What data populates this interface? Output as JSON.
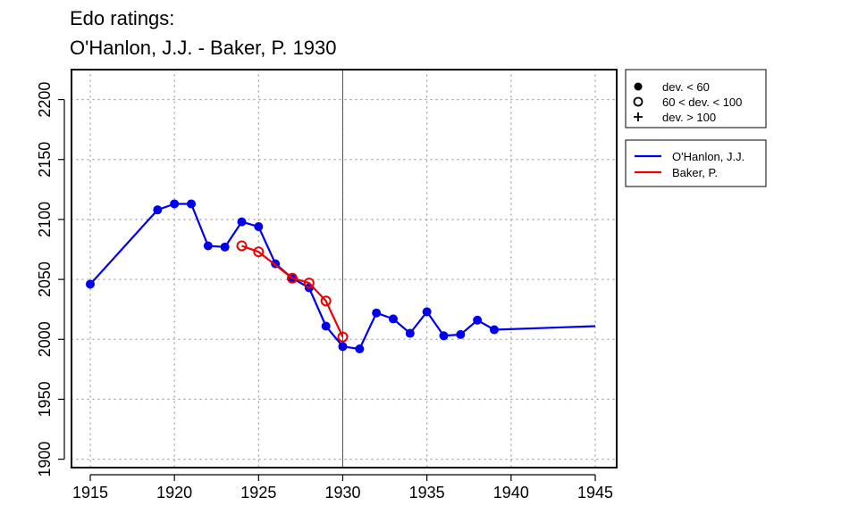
{
  "chart_data": {
    "type": "line",
    "title": "Edo ratings:",
    "subtitle": "O'Hanlon, J.J. - Baker, P. 1930",
    "xlabel": "",
    "ylabel": "",
    "xlim": [
      1915,
      1945
    ],
    "ylim": [
      1893,
      2225
    ],
    "x_ticks": [
      1915,
      1920,
      1925,
      1930,
      1935,
      1940,
      1945
    ],
    "y_ticks": [
      1900,
      1950,
      2000,
      2050,
      2100,
      2150,
      2200
    ],
    "grid": true,
    "reference_line_x": 1930,
    "legend_placement": "right",
    "marker_legend": [
      {
        "symbol": "filled-circle",
        "label": "dev. < 60"
      },
      {
        "symbol": "open-circle",
        "label": "60 < dev. < 100"
      },
      {
        "symbol": "plus",
        "label": "dev. > 100"
      }
    ],
    "series": [
      {
        "name": "O'Hanlon, J.J.",
        "color": "#0000ee",
        "points": [
          {
            "x": 1915,
            "y": 2046,
            "marker": "filled-circle"
          },
          {
            "x": 1919,
            "y": 2108,
            "marker": "filled-circle"
          },
          {
            "x": 1920,
            "y": 2113,
            "marker": "filled-circle"
          },
          {
            "x": 1921,
            "y": 2113,
            "marker": "filled-circle"
          },
          {
            "x": 1922,
            "y": 2078,
            "marker": "filled-circle"
          },
          {
            "x": 1923,
            "y": 2077,
            "marker": "filled-circle"
          },
          {
            "x": 1924,
            "y": 2098,
            "marker": "filled-circle"
          },
          {
            "x": 1925,
            "y": 2094,
            "marker": "filled-circle"
          },
          {
            "x": 1926,
            "y": 2063,
            "marker": "filled-circle"
          },
          {
            "x": 1927,
            "y": 2051,
            "marker": "filled-circle"
          },
          {
            "x": 1928,
            "y": 2043,
            "marker": "filled-circle"
          },
          {
            "x": 1929,
            "y": 2011,
            "marker": "filled-circle"
          },
          {
            "x": 1930,
            "y": 1994,
            "marker": "filled-circle"
          },
          {
            "x": 1931,
            "y": 1992,
            "marker": "filled-circle"
          },
          {
            "x": 1932,
            "y": 2022,
            "marker": "filled-circle"
          },
          {
            "x": 1933,
            "y": 2017,
            "marker": "filled-circle"
          },
          {
            "x": 1934,
            "y": 2005,
            "marker": "filled-circle"
          },
          {
            "x": 1935,
            "y": 2023,
            "marker": "filled-circle"
          },
          {
            "x": 1936,
            "y": 2003,
            "marker": "filled-circle"
          },
          {
            "x": 1937,
            "y": 2004,
            "marker": "filled-circle"
          },
          {
            "x": 1938,
            "y": 2016,
            "marker": "filled-circle"
          },
          {
            "x": 1939,
            "y": 2008,
            "marker": "filled-circle"
          },
          {
            "x": 1945,
            "y": 2011,
            "marker": "none"
          }
        ]
      },
      {
        "name": "Baker, P.",
        "color": "#ee0000",
        "points": [
          {
            "x": 1924,
            "y": 2078,
            "marker": "open-circle"
          },
          {
            "x": 1925,
            "y": 2073,
            "marker": "open-circle"
          },
          {
            "x": 1927,
            "y": 2051,
            "marker": "open-circle"
          },
          {
            "x": 1928,
            "y": 2047,
            "marker": "open-circle"
          },
          {
            "x": 1929,
            "y": 2032,
            "marker": "open-circle"
          },
          {
            "x": 1930,
            "y": 2002,
            "marker": "open-circle"
          }
        ]
      }
    ]
  }
}
